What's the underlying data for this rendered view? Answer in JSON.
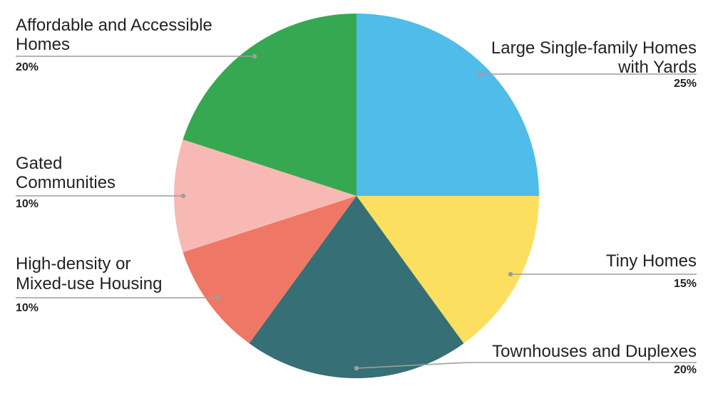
{
  "chart_data": {
    "type": "pie",
    "title": "",
    "slices": [
      {
        "label": "Large Single-family Homes with Yards",
        "value": 25,
        "percent_label": "25%",
        "color": "#4fbce9"
      },
      {
        "label": "Tiny Homes",
        "value": 15,
        "percent_label": "15%",
        "color": "#fcdf5f"
      },
      {
        "label": "Townhouses and Duplexes",
        "value": 20,
        "percent_label": "20%",
        "color": "#366f75"
      },
      {
        "label": "High-density or Mixed-use Housing",
        "value": 10,
        "percent_label": "10%",
        "color": "#ef7765"
      },
      {
        "label": "Gated Communities",
        "value": 10,
        "percent_label": "10%",
        "color": "#f8b9b5"
      },
      {
        "label": "Affordable and Accessible Homes",
        "value": 20,
        "percent_label": "20%",
        "color": "#36a852"
      }
    ],
    "start_angle": "12 o'clock",
    "direction": "clockwise",
    "legend": "none (slice labels with leader lines)",
    "label_color": "#222222",
    "leader_line_color": "#9e9e9e"
  }
}
